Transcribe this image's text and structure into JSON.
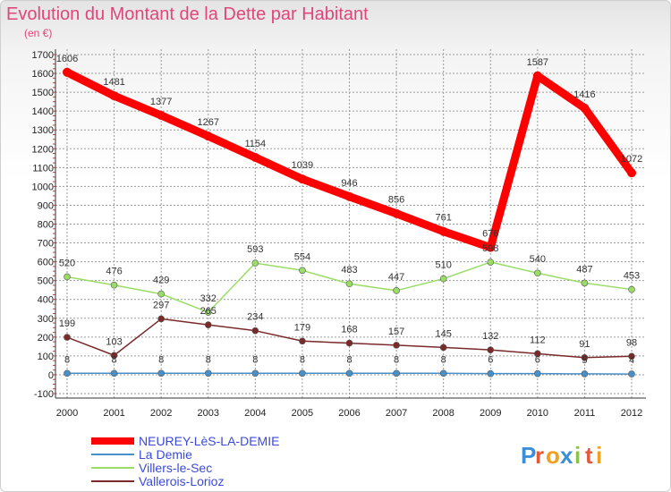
{
  "chart_data": {
    "type": "line",
    "title": "Evolution du Montant de la Dette par Habitant",
    "unit": "(en €)",
    "xlabel": "",
    "ylabel": "",
    "categories": [
      "2000",
      "2001",
      "2002",
      "2003",
      "2004",
      "2005",
      "2006",
      "2007",
      "2008",
      "2009",
      "2010",
      "2011",
      "2012"
    ],
    "ylim": [
      -100,
      1700
    ],
    "yticks": [
      -100,
      0,
      100,
      200,
      300,
      400,
      500,
      600,
      700,
      800,
      900,
      1000,
      1100,
      1200,
      1300,
      1400,
      1500,
      1600,
      1700
    ],
    "grid": true,
    "legend_position": "bottom-left",
    "series": [
      {
        "name": "NEUREY-LèS-LA-DEMIE",
        "color": "#ff0000",
        "values": [
          1606,
          1481,
          1377,
          1267,
          1154,
          1039,
          946,
          856,
          761,
          676,
          1587,
          1416,
          1072
        ]
      },
      {
        "name": "La Demie",
        "color": "#4a90c8",
        "values": [
          8,
          8,
          8,
          8,
          8,
          8,
          8,
          8,
          8,
          6,
          6,
          5,
          4
        ]
      },
      {
        "name": "Villers-le-Sec",
        "color": "#99dd66",
        "values": [
          520,
          476,
          429,
          332,
          593,
          554,
          483,
          447,
          510,
          598,
          540,
          487,
          453
        ]
      },
      {
        "name": "Vallerois-Lorioz",
        "color": "#7a2a2a",
        "values": [
          199,
          103,
          297,
          265,
          234,
          179,
          168,
          157,
          145,
          132,
          112,
          91,
          98
        ]
      }
    ]
  },
  "logo": {
    "letters": [
      "P",
      "r",
      "o",
      "x",
      "i",
      "t",
      "i"
    ],
    "colors": [
      "#3a8fd8",
      "#e25a3a",
      "#f0a020",
      "#3a8fd8",
      "#8bc34a",
      "#e25a3a",
      "#f0a020"
    ]
  }
}
